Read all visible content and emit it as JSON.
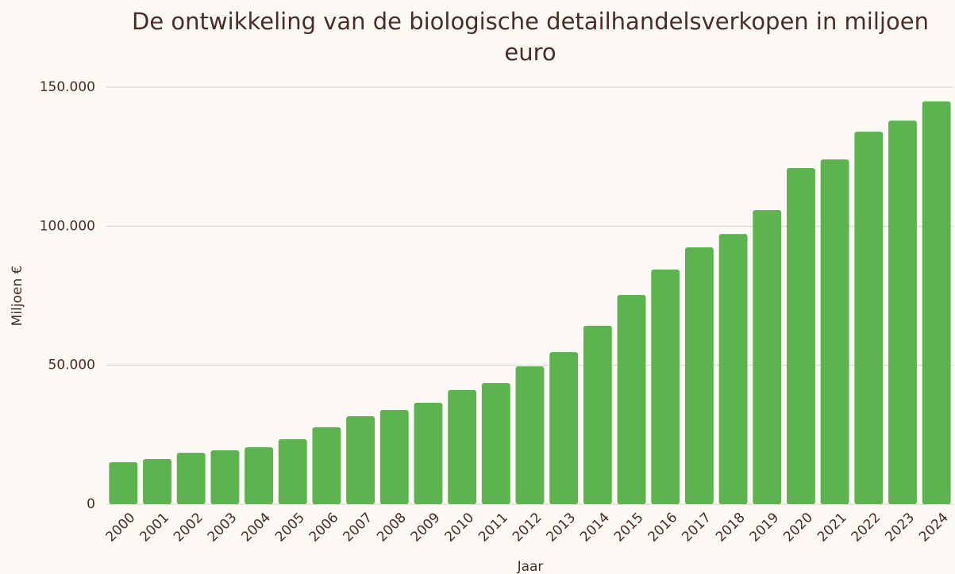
{
  "chart_data": {
    "type": "bar",
    "title": "De ontwikkeling van de biologische detailhandelsverkopen in miljoen euro",
    "x_label": "Jaar",
    "y_label": "Miljoen €",
    "categories": [
      "2000",
      "2001",
      "2002",
      "2003",
      "2004",
      "2005",
      "2006",
      "2007",
      "2008",
      "2009",
      "2010",
      "2011",
      "2012",
      "2013",
      "2014",
      "2015",
      "2016",
      "2017",
      "2018",
      "2019",
      "2020",
      "2021",
      "2022",
      "2023",
      "2024"
    ],
    "values": [
      15100,
      16250,
      18500,
      19400,
      20500,
      23400,
      27700,
      31650,
      33900,
      36500,
      41100,
      43600,
      49600,
      54700,
      64200,
      75300,
      84400,
      92400,
      97200,
      105800,
      120900,
      124000,
      134000,
      138000,
      144900
    ],
    "color": "#5cb350",
    "ylim": [
      0,
      150000
    ],
    "yticks": [
      0,
      {
        "value": 50000,
        "label": "50.000"
      },
      {
        "value": 100000,
        "label": "100.000"
      },
      {
        "value": 150000,
        "label": "150.000"
      }
    ],
    "grid": true
  }
}
